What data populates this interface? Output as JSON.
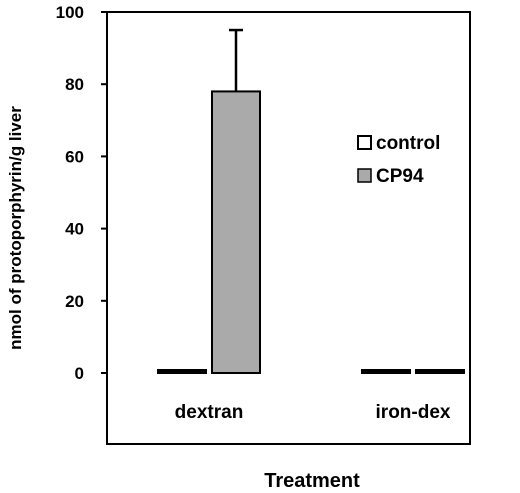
{
  "chart_data": {
    "type": "bar",
    "title": "",
    "xlabel": "Treatment",
    "ylabel": "nmol of protoporphyrin/g liver",
    "ylim": [
      0,
      100
    ],
    "y_ticks": [
      "0",
      "20",
      "40",
      "60",
      "80",
      "100"
    ],
    "categories": [
      "dextran",
      "iron-dex"
    ],
    "series": [
      {
        "name": "control",
        "color": "#ffffff",
        "values": [
          0.5,
          0.3
        ],
        "errors": [
          0,
          0
        ]
      },
      {
        "name": "CP94",
        "color": "#aaaaaa",
        "values": [
          78,
          0.3
        ],
        "errors": [
          17,
          0
        ]
      }
    ],
    "legend_position": "right",
    "grid": false
  }
}
